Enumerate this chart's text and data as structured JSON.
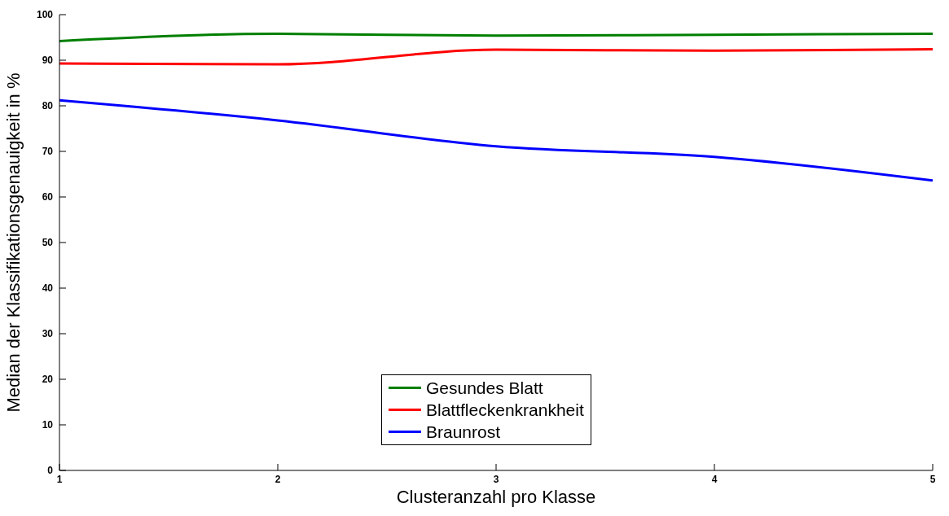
{
  "chart_data": {
    "type": "line",
    "xlabel": "Clusteranzahl pro Klasse",
    "ylabel": "Median der Klassifikationsgenauigkeit in %",
    "x": [
      1,
      2,
      3,
      4,
      5
    ],
    "series": [
      {
        "name": "Gesundes Blatt",
        "color": "#007f00",
        "values": [
          94.2,
          95.8,
          95.4,
          95.6,
          95.8
        ]
      },
      {
        "name": "Blattfleckenkrankheit",
        "color": "#ff0000",
        "values": [
          89.3,
          89.1,
          92.3,
          92.1,
          92.4
        ]
      },
      {
        "name": "Braunrost",
        "color": "#0000ff",
        "values": [
          81.2,
          76.8,
          71.1,
          68.8,
          63.6
        ]
      }
    ],
    "xlim": [
      1,
      5
    ],
    "xticks": [
      1,
      2,
      3,
      4,
      5
    ],
    "ylim": [
      0,
      100
    ],
    "yticks": [
      0,
      10,
      20,
      30,
      40,
      50,
      60,
      70,
      80,
      90,
      100
    ],
    "grid": false,
    "legend": "bottom",
    "marker": "none",
    "line_style": "solid"
  }
}
